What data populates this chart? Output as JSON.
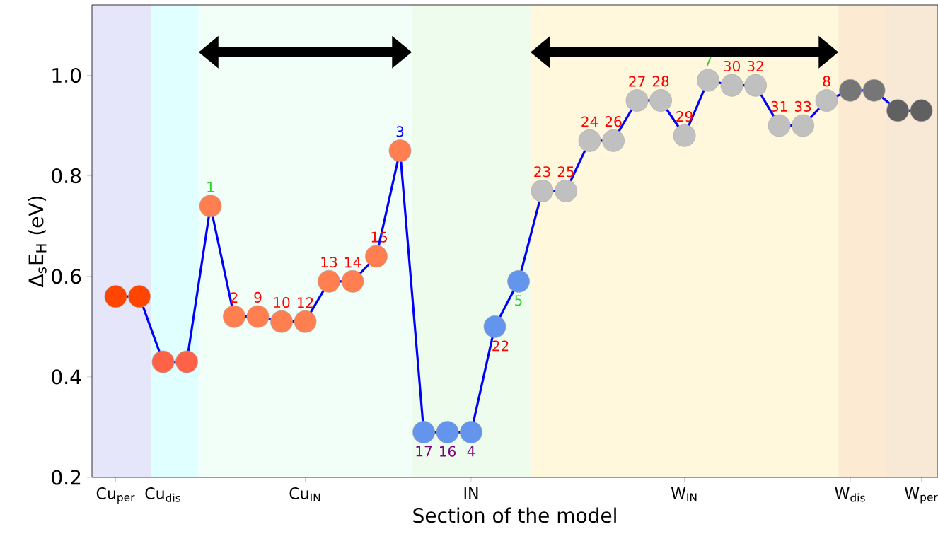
{
  "chart_data": {
    "type": "line",
    "xlabel": "Section of the model",
    "ylabel": "Δ$_{s}$E$_{H}$ (eV)",
    "categories": [
      "Cu$_{per}$",
      null,
      "Cu$_{dis}$",
      null,
      null,
      null,
      null,
      null,
      "Cu$_{IN}$",
      null,
      null,
      null,
      null,
      null,
      null,
      "IN",
      null,
      null,
      null,
      null,
      null,
      null,
      null,
      null,
      "W$_{IN}$",
      null,
      null,
      null,
      null,
      null,
      null,
      "W$_{dis}$",
      null,
      null,
      "W$_{per}$"
    ],
    "values": [
      0.56,
      0.56,
      0.43,
      0.43,
      0.74,
      0.52,
      0.52,
      0.51,
      0.51,
      0.59,
      0.59,
      0.64,
      0.85,
      0.29,
      0.29,
      0.29,
      0.5,
      0.59,
      0.77,
      0.77,
      0.87,
      0.87,
      0.95,
      0.95,
      0.88,
      0.99,
      0.98,
      0.98,
      0.9,
      0.9,
      0.95,
      0.97,
      0.97,
      0.93,
      0.93
    ],
    "color": "#0000ff",
    "colors": [
      "#ff4500",
      "#ff4500",
      "#ff6347",
      "#ff6347",
      "#ff7f50",
      "#ff7f50",
      "#ff7f50",
      "#ff7f50",
      "#ff7f50",
      "#ff7f50",
      "#ff7f50",
      "#ff7f50",
      "#ff7f50",
      "#6495ed",
      "#6495ed",
      "#6495ed",
      "#6495ed",
      "#6495ed",
      "#c0c0c0",
      "#c0c0c0",
      "#c0c0c0",
      "#c0c0c0",
      "#c0c0c0",
      "#c0c0c0",
      "#c0c0c0",
      "#c0c0c0",
      "#c0c0c0",
      "#c0c0c0",
      "#c0c0c0",
      "#c0c0c0",
      "#c0c0c0",
      "#767676",
      "#767676",
      "#606060",
      "#606060"
    ],
    "marker": "circle",
    "line_style": "solid",
    "ylim": [
      0.2,
      1.14
    ],
    "yticks": [
      0.2,
      0.4,
      0.6,
      0.8,
      {
        "value": 1.0,
        "label": "1.0"
      }
    ],
    "annotations": [
      "1",
      "2",
      "9",
      "10",
      "12",
      "13",
      "14",
      "15",
      "3",
      "17",
      "16",
      "4",
      "22",
      "5",
      "23",
      "25",
      "24",
      "26",
      "27",
      "28",
      "29",
      "7",
      "30",
      "32",
      "31",
      "33",
      "8"
    ]
  }
}
